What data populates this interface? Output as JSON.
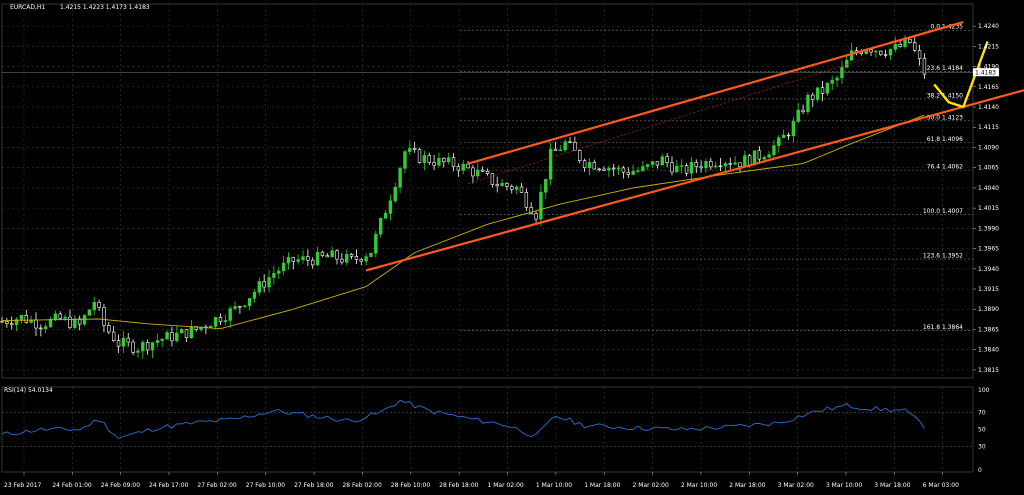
{
  "window": {
    "title": "EURCAD,H1",
    "ohlc": "1.4215 1.4223 1.4173 1.4183"
  },
  "chart_data": {
    "type": "candlestick",
    "symbol": "EURCAD",
    "timeframe": "H1",
    "ylim": [
      1.3805,
      1.4255
    ],
    "y_ticks": [
      1.424,
      1.4215,
      1.419,
      1.4165,
      1.414,
      1.4115,
      1.409,
      1.4065,
      1.404,
      1.4015,
      1.399,
      1.3965,
      1.394,
      1.3915,
      1.389,
      1.3865,
      1.384,
      1.3815
    ],
    "y_tick_labels": [
      "1.4240",
      "1.4215",
      "1.4190",
      "1.4165",
      "1.4140",
      "1.4115",
      "1.4090",
      "1.4065",
      "1.4040",
      "1.4015",
      "1.3990",
      "1.3965",
      "1.3940",
      "1.3915",
      "1.3890",
      "1.3865",
      "1.3840",
      "1.3815"
    ],
    "current_price": 1.4183,
    "current_price_label": "1.4183",
    "x_tick_labels": [
      "23 Feb 2017",
      "24 Feb 01:00",
      "24 Feb 09:00",
      "24 Feb 17:00",
      "27 Feb 02:00",
      "27 Feb 10:00",
      "27 Feb 18:00",
      "28 Feb 02:00",
      "28 Feb 10:00",
      "28 Feb 18:00",
      "1 Mar 02:00",
      "1 Mar 10:00",
      "1 Mar 18:00",
      "2 Mar 02:00",
      "2 Mar 10:00",
      "2 Mar 18:00",
      "3 Mar 02:00",
      "3 Mar 10:00",
      "3 Mar 18:00",
      "6 Mar 03:00"
    ],
    "fibonacci_levels": [
      {
        "label": "0.0  1.4235",
        "price": 1.4235
      },
      {
        "label": "23.6  1.4184",
        "price": 1.4184
      },
      {
        "label": "38.2  1.4150",
        "price": 1.415
      },
      {
        "label": "50.0  1.4123",
        "price": 1.4123
      },
      {
        "label": "61.8  1.4096",
        "price": 1.4096
      },
      {
        "label": "76.4  1.4062",
        "price": 1.4062
      },
      {
        "label": "100.0  1.4007",
        "price": 1.4007
      },
      {
        "label": "123.6  1.3952",
        "price": 1.3952
      },
      {
        "label": "161.8  1.3864",
        "price": 1.3864
      }
    ],
    "close_path": [
      {
        "t": 0,
        "p": 1.3875
      },
      {
        "t": 4,
        "p": 1.388
      },
      {
        "t": 8,
        "p": 1.3872
      },
      {
        "t": 12,
        "p": 1.3878
      },
      {
        "t": 16,
        "p": 1.387
      },
      {
        "t": 19,
        "p": 1.39
      },
      {
        "t": 21,
        "p": 1.387
      },
      {
        "t": 24,
        "p": 1.3848
      },
      {
        "t": 28,
        "p": 1.3843
      },
      {
        "t": 32,
        "p": 1.3852
      },
      {
        "t": 36,
        "p": 1.3858
      },
      {
        "t": 40,
        "p": 1.3865
      },
      {
        "t": 44,
        "p": 1.3878
      },
      {
        "t": 48,
        "p": 1.389
      },
      {
        "t": 52,
        "p": 1.3912
      },
      {
        "t": 56,
        "p": 1.3935
      },
      {
        "t": 60,
        "p": 1.395
      },
      {
        "t": 64,
        "p": 1.3952
      },
      {
        "t": 68,
        "p": 1.3955
      },
      {
        "t": 72,
        "p": 1.395
      },
      {
        "t": 76,
        "p": 1.3962
      },
      {
        "t": 80,
        "p": 1.403
      },
      {
        "t": 83,
        "p": 1.4085
      },
      {
        "t": 86,
        "p": 1.4078
      },
      {
        "t": 90,
        "p": 1.4072
      },
      {
        "t": 94,
        "p": 1.4068
      },
      {
        "t": 98,
        "p": 1.4058
      },
      {
        "t": 102,
        "p": 1.4045
      },
      {
        "t": 106,
        "p": 1.404
      },
      {
        "t": 110,
        "p": 1.4008
      },
      {
        "t": 113,
        "p": 1.408
      },
      {
        "t": 116,
        "p": 1.4095
      },
      {
        "t": 120,
        "p": 1.4072
      },
      {
        "t": 124,
        "p": 1.4068
      },
      {
        "t": 128,
        "p": 1.406
      },
      {
        "t": 132,
        "p": 1.4062
      },
      {
        "t": 136,
        "p": 1.4075
      },
      {
        "t": 140,
        "p": 1.406
      },
      {
        "t": 144,
        "p": 1.407
      },
      {
        "t": 148,
        "p": 1.4075
      },
      {
        "t": 152,
        "p": 1.4072
      },
      {
        "t": 156,
        "p": 1.408
      },
      {
        "t": 160,
        "p": 1.4095
      },
      {
        "t": 163,
        "p": 1.4118
      },
      {
        "t": 166,
        "p": 1.415
      },
      {
        "t": 169,
        "p": 1.416
      },
      {
        "t": 172,
        "p": 1.4175
      },
      {
        "t": 175,
        "p": 1.4205
      },
      {
        "t": 178,
        "p": 1.4215
      },
      {
        "t": 181,
        "p": 1.421
      },
      {
        "t": 184,
        "p": 1.4212
      },
      {
        "t": 187,
        "p": 1.422
      },
      {
        "t": 190,
        "p": 1.4183
      }
    ],
    "t_max": 200,
    "ma_path": [
      {
        "t": 0,
        "p": 1.3876
      },
      {
        "t": 20,
        "p": 1.3878
      },
      {
        "t": 30,
        "p": 1.3872
      },
      {
        "t": 45,
        "p": 1.3866
      },
      {
        "t": 60,
        "p": 1.389
      },
      {
        "t": 75,
        "p": 1.3918
      },
      {
        "t": 85,
        "p": 1.396
      },
      {
        "t": 100,
        "p": 1.3995
      },
      {
        "t": 115,
        "p": 1.402
      },
      {
        "t": 130,
        "p": 1.404
      },
      {
        "t": 150,
        "p": 1.4058
      },
      {
        "t": 165,
        "p": 1.407
      },
      {
        "t": 175,
        "p": 1.4095
      },
      {
        "t": 190,
        "p": 1.413
      }
    ],
    "channel": {
      "upper": [
        {
          "t": 96,
          "p": 1.407
        },
        {
          "t": 198,
          "p": 1.4245
        }
      ],
      "lower": [
        {
          "t": 75,
          "p": 1.3938
        },
        {
          "t": 221,
          "p": 1.4178
        }
      ],
      "midline": [
        {
          "t": 96,
          "p": 1.4045
        },
        {
          "t": 178,
          "p": 1.42
        }
      ]
    },
    "projection": [
      {
        "t": 192,
        "p": 1.4168
      },
      {
        "t": 195,
        "p": 1.4146
      },
      {
        "t": 198,
        "p": 1.414
      },
      {
        "t": 203,
        "p": 1.4221
      }
    ],
    "rsi": {
      "label": "RSI(14) 54.0134",
      "ylim": [
        0,
        100
      ],
      "y_ticks": [
        100,
        70,
        50,
        30,
        0
      ],
      "y_tick_labels": [
        "100",
        "70",
        "50",
        "30",
        "0"
      ],
      "values": [
        {
          "t": 0,
          "v": 44
        },
        {
          "t": 8,
          "v": 50
        },
        {
          "t": 16,
          "v": 50
        },
        {
          "t": 20,
          "v": 62
        },
        {
          "t": 24,
          "v": 40
        },
        {
          "t": 32,
          "v": 52
        },
        {
          "t": 40,
          "v": 58
        },
        {
          "t": 48,
          "v": 62
        },
        {
          "t": 56,
          "v": 72
        },
        {
          "t": 64,
          "v": 66
        },
        {
          "t": 72,
          "v": 60
        },
        {
          "t": 78,
          "v": 70
        },
        {
          "t": 82,
          "v": 84
        },
        {
          "t": 88,
          "v": 72
        },
        {
          "t": 96,
          "v": 63
        },
        {
          "t": 104,
          "v": 55
        },
        {
          "t": 110,
          "v": 42
        },
        {
          "t": 114,
          "v": 66
        },
        {
          "t": 120,
          "v": 55
        },
        {
          "t": 130,
          "v": 52
        },
        {
          "t": 140,
          "v": 50
        },
        {
          "t": 150,
          "v": 53
        },
        {
          "t": 160,
          "v": 58
        },
        {
          "t": 168,
          "v": 72
        },
        {
          "t": 174,
          "v": 78
        },
        {
          "t": 180,
          "v": 74
        },
        {
          "t": 186,
          "v": 72
        },
        {
          "t": 190,
          "v": 54
        }
      ]
    },
    "colors": {
      "background": "#000000",
      "grid": "#3a3a3a",
      "bull": "#33cc33",
      "bear": "#ffffff",
      "ma": "#c8b400",
      "channel": "#ff5a1e",
      "projection": "#ffe600",
      "rsi": "#2f6fcf",
      "axis_text": "#ffffff",
      "current_price_box": "#ffffff"
    }
  }
}
